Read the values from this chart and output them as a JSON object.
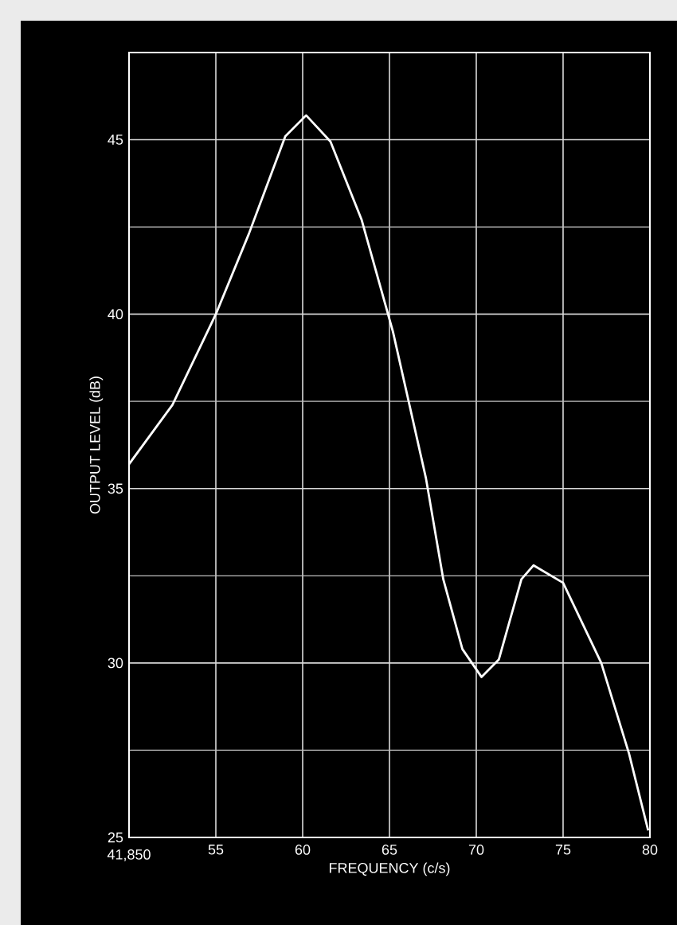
{
  "chart_data": {
    "type": "line",
    "xlabel": "FREQUENCY (c/s)",
    "ylabel": "OUTPUT LEVEL (dB)",
    "x": [
      50,
      52.5,
      55,
      56.9,
      59,
      60.2,
      61.6,
      63.4,
      65.2,
      67.1,
      68.1,
      69.2,
      70.3,
      71.3,
      72.6,
      73.3,
      75,
      77.2,
      78.8,
      79.9
    ],
    "values": [
      35.7,
      37.4,
      40,
      42.3,
      45.1,
      45.7,
      44.95,
      42.7,
      39.5,
      35.3,
      32.4,
      30.4,
      29.6,
      30.1,
      32.4,
      32.8,
      32.3,
      30.0,
      27.4,
      25.2
    ],
    "color": "#ffffff",
    "xlim": [
      50,
      80
    ],
    "ylim": [
      25,
      47.5
    ],
    "annotations": [
      "41,850"
    ],
    "xticks": [
      {
        "value": 50,
        "label": null
      },
      55,
      60,
      65,
      70,
      75,
      80
    ],
    "yticks": [
      25,
      30,
      35,
      40,
      45
    ],
    "grid": true,
    "marker": "none",
    "line_style": "solid"
  }
}
